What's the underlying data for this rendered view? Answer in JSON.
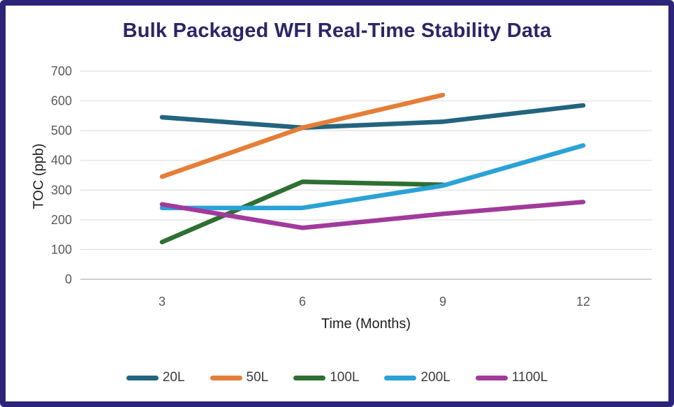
{
  "window": {
    "title": "Bulk Packaged WFI Real-Time Stability Data"
  },
  "theme": {
    "border_color": "#2B2478",
    "title_color": "#2B2666",
    "grid_color": "#D9D9D9",
    "axis_line_color": "#BFBFBF",
    "tick_label_color": "#595959",
    "axis_title_color": "#1f1f1f",
    "legend_text_color": "#3B3B3B"
  },
  "chart_data": {
    "type": "line",
    "title": "Bulk Packaged WFI Real-Time Stability Data",
    "xlabel": "Time (Months)",
    "ylabel": "TOC (ppb)",
    "xticks": [
      3,
      6,
      9,
      12
    ],
    "yticks": [
      0,
      100,
      200,
      300,
      400,
      500,
      600,
      700
    ],
    "ylim": [
      0,
      700
    ],
    "grid": "horizontal",
    "legend_position": "bottom",
    "series": [
      {
        "name": "20L",
        "color": "#23647E",
        "x": [
          3,
          6,
          9,
          12
        ],
        "y": [
          545,
          510,
          530,
          585
        ]
      },
      {
        "name": "50L",
        "color": "#E57E38",
        "x": [
          3,
          6,
          9
        ],
        "y": [
          345,
          510,
          620
        ]
      },
      {
        "name": "100L",
        "color": "#2E6F32",
        "x": [
          3,
          6,
          9
        ],
        "y": [
          125,
          328,
          318
        ]
      },
      {
        "name": "200L",
        "color": "#2BA2D6",
        "x": [
          3,
          6,
          9,
          12
        ],
        "y": [
          240,
          240,
          315,
          450
        ]
      },
      {
        "name": "1100L",
        "color": "#A13A9B",
        "x": [
          3,
          6,
          9,
          12
        ],
        "y": [
          252,
          173,
          220,
          260
        ]
      }
    ]
  }
}
